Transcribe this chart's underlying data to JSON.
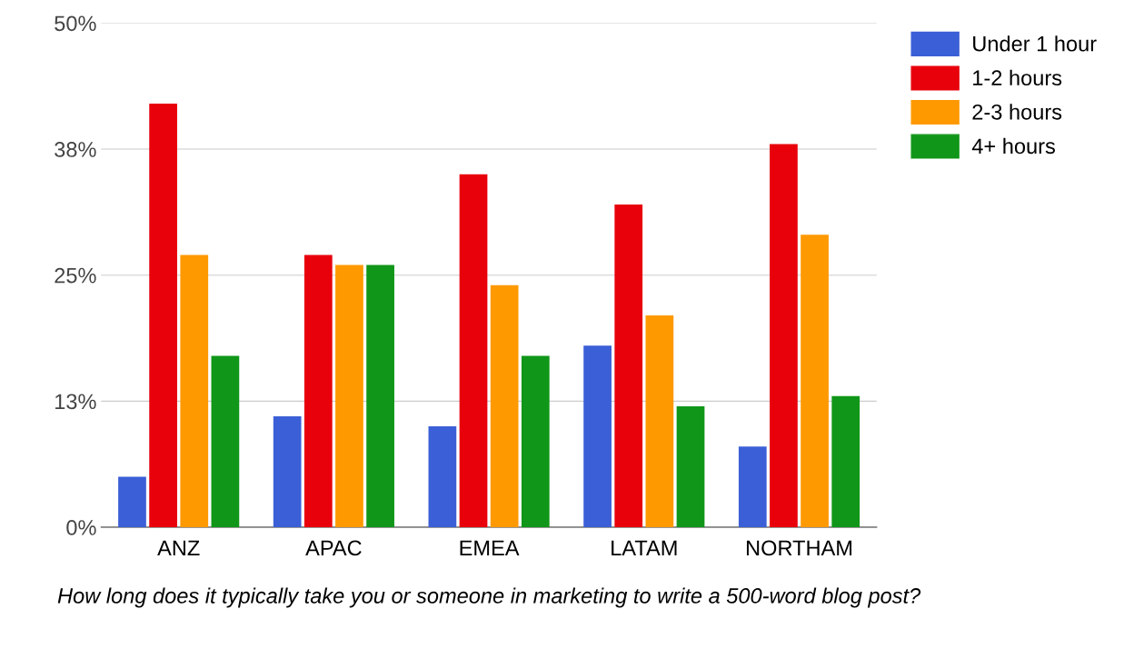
{
  "chart_data": {
    "type": "bar",
    "xlabel": "How long does it typically take you or someone in marketing to write a 500-word blog post?",
    "categories": [
      "ANZ",
      "APAC",
      "EMEA",
      "LATAM",
      "NORTHAM"
    ],
    "series": [
      {
        "name": "Under 1 hour",
        "color": "#3b5fd6",
        "values": [
          5,
          11,
          10,
          18,
          8
        ]
      },
      {
        "name": "1-2 hours",
        "color": "#e8000b",
        "values": [
          42,
          27,
          35,
          32,
          38
        ]
      },
      {
        "name": "2-3 hours",
        "color": "#ff9900",
        "values": [
          27,
          26,
          24,
          21,
          29
        ]
      },
      {
        "name": "4+ hours",
        "color": "#109618",
        "values": [
          17,
          26,
          17,
          12,
          13
        ]
      }
    ],
    "ylim": [
      0,
      50
    ],
    "yticks": [
      {
        "value": 0,
        "label": "0%"
      },
      {
        "value": 12.5,
        "label": "13%"
      },
      {
        "value": 25,
        "label": "25%"
      },
      {
        "value": 37.5,
        "label": "38%"
      },
      {
        "value": 50,
        "label": "50%"
      }
    ],
    "grid": "y",
    "legend": "top right"
  }
}
